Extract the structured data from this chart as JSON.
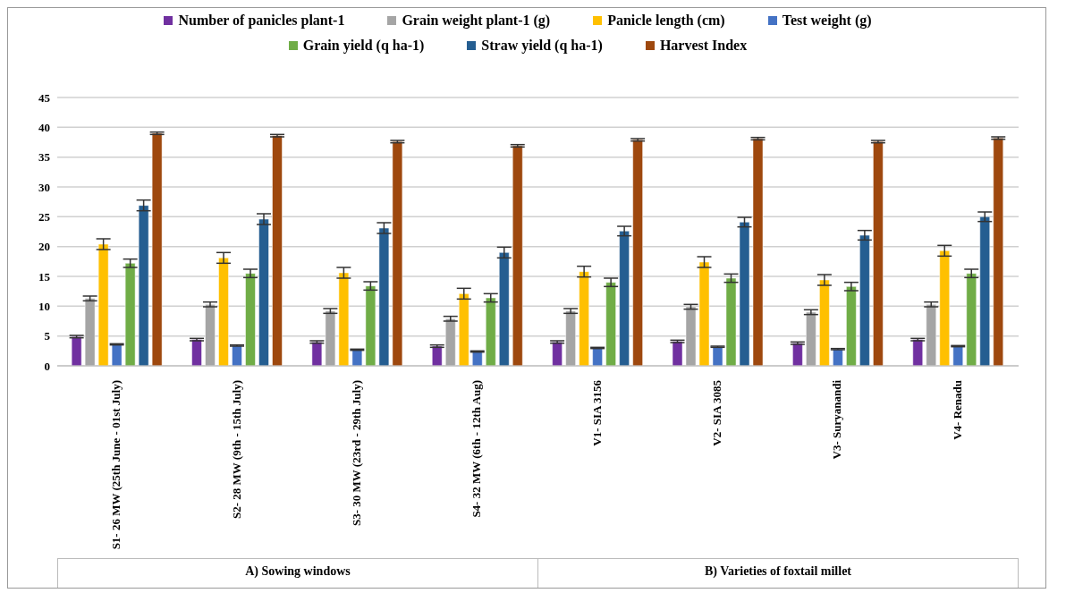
{
  "chart_data": {
    "type": "bar",
    "categories": [
      "S1- 26 MW (25th June - 01st July)",
      "S2- 28 MW (9th - 15th July)",
      "S3- 30 MW (23rd - 29th July)",
      "S4- 32 MW (6th - 12th Aug)",
      "V1- SIA 3156",
      "V2- SIA 3085",
      "V3- Suryanandi",
      "V4- Renadu"
    ],
    "series": [
      {
        "name": "Number of panicles plant-1",
        "color": "#7030a0",
        "values": [
          4.9,
          4.4,
          4.0,
          3.3,
          4.0,
          4.1,
          3.8,
          4.4
        ],
        "errors": [
          0.2,
          0.2,
          0.2,
          0.2,
          0.2,
          0.2,
          0.2,
          0.2
        ]
      },
      {
        "name": "Grain weight plant-1 (g)",
        "color": "#a5a5a5",
        "values": [
          11.3,
          10.3,
          9.2,
          7.9,
          9.2,
          9.9,
          9.0,
          10.3
        ],
        "errors": [
          0.4,
          0.4,
          0.4,
          0.4,
          0.4,
          0.4,
          0.4,
          0.4
        ]
      },
      {
        "name": "Panicle length (cm)",
        "color": "#ffc000",
        "values": [
          20.4,
          18.1,
          15.6,
          12.1,
          15.8,
          17.4,
          14.4,
          19.3
        ],
        "errors": [
          0.9,
          0.9,
          0.9,
          0.9,
          0.9,
          0.9,
          0.9,
          0.9
        ]
      },
      {
        "name": "Test weight (g)",
        "color": "#4472c4",
        "values": [
          3.6,
          3.4,
          2.7,
          2.4,
          3.0,
          3.2,
          2.8,
          3.3
        ],
        "errors": [
          0.1,
          0.1,
          0.1,
          0.1,
          0.1,
          0.1,
          0.1,
          0.1
        ]
      },
      {
        "name": "Grain yield (q ha-1)",
        "color": "#70ad47",
        "values": [
          17.2,
          15.5,
          13.4,
          11.4,
          14.0,
          14.7,
          13.3,
          15.5
        ],
        "errors": [
          0.7,
          0.7,
          0.7,
          0.7,
          0.7,
          0.7,
          0.7,
          0.7
        ]
      },
      {
        "name": "Straw yield (q ha-1)",
        "color": "#255e91",
        "values": [
          26.9,
          24.6,
          23.1,
          19.0,
          22.6,
          24.1,
          21.9,
          25.0
        ],
        "errors": [
          0.9,
          0.9,
          0.9,
          0.9,
          0.8,
          0.8,
          0.8,
          0.8
        ]
      },
      {
        "name": "Harvest Index",
        "color": "#9e480e",
        "values": [
          39.0,
          38.6,
          37.6,
          36.9,
          37.9,
          38.1,
          37.6,
          38.2
        ],
        "errors": [
          0.2,
          0.2,
          0.2,
          0.2,
          0.2,
          0.2,
          0.2,
          0.2
        ]
      }
    ],
    "ylim": [
      0,
      45
    ],
    "yticks": [
      0,
      5,
      10,
      15,
      20,
      25,
      30,
      35,
      40,
      45
    ],
    "grid": "y",
    "legend": "top",
    "annotations": [
      "A) Sowing windows",
      "B) Varieties of foxtail millet"
    ]
  }
}
